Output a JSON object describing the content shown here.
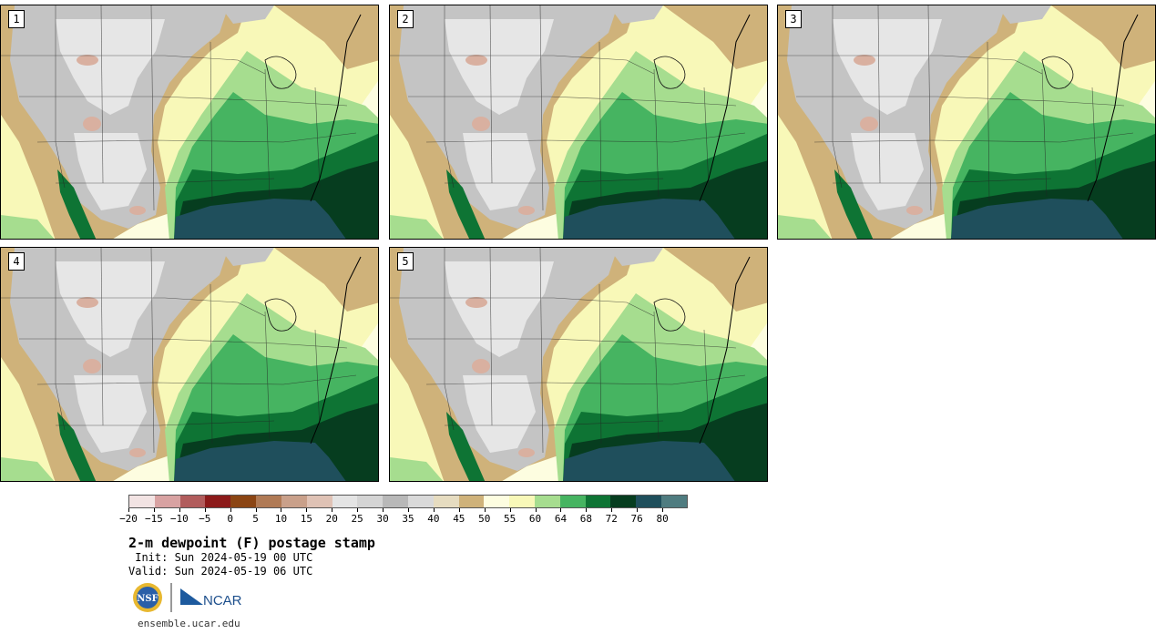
{
  "panels": [
    {
      "label": "1"
    },
    {
      "label": "2"
    },
    {
      "label": "3"
    },
    {
      "label": "4"
    },
    {
      "label": "5"
    }
  ],
  "colorbar": {
    "ticks": [
      "−20",
      "−15",
      "−10",
      "−5",
      "0",
      "5",
      "10",
      "15",
      "20",
      "25",
      "30",
      "35",
      "40",
      "45",
      "50",
      "55",
      "60",
      "64",
      "68",
      "72",
      "76",
      "80"
    ],
    "colors": [
      "#f2e3e3",
      "#d8a2a2",
      "#b15c5c",
      "#8c1a1a",
      "#8b4513",
      "#b07a55",
      "#c9a08a",
      "#dfc2b5",
      "#e4e4e4",
      "#d4d4d4",
      "#b8b8b8",
      "#d9d9d9",
      "#e6dcc0",
      "#cfb27a",
      "#fdfde0",
      "#f8f8b8",
      "#a6dd8f",
      "#46b461",
      "#0e7434",
      "#063d1f",
      "#1f4f5c",
      "#4f7c80"
    ]
  },
  "title": "2-m dewpoint (F) postage stamp",
  "init": " Init: Sun 2024-05-19 00 UTC",
  "valid": "Valid: Sun 2024-05-19 06 UTC",
  "logos": {
    "nsf": "NSF",
    "ncar": "NCAR"
  },
  "site": "ensemble.ucar.edu",
  "map_colors": {
    "ocean_gulf": "#1f4f5c",
    "very_humid": "#063d1f",
    "humid": "#0e7434",
    "moist": "#46b461",
    "moist_light": "#a6dd8f",
    "mild": "#f8f8b8",
    "mild_light": "#fdfde0",
    "dry_tan": "#cfb27a",
    "dry_gray": "#c4c4c4",
    "dry_light": "#e6e6e6",
    "very_dry": "#d9b0a0"
  }
}
